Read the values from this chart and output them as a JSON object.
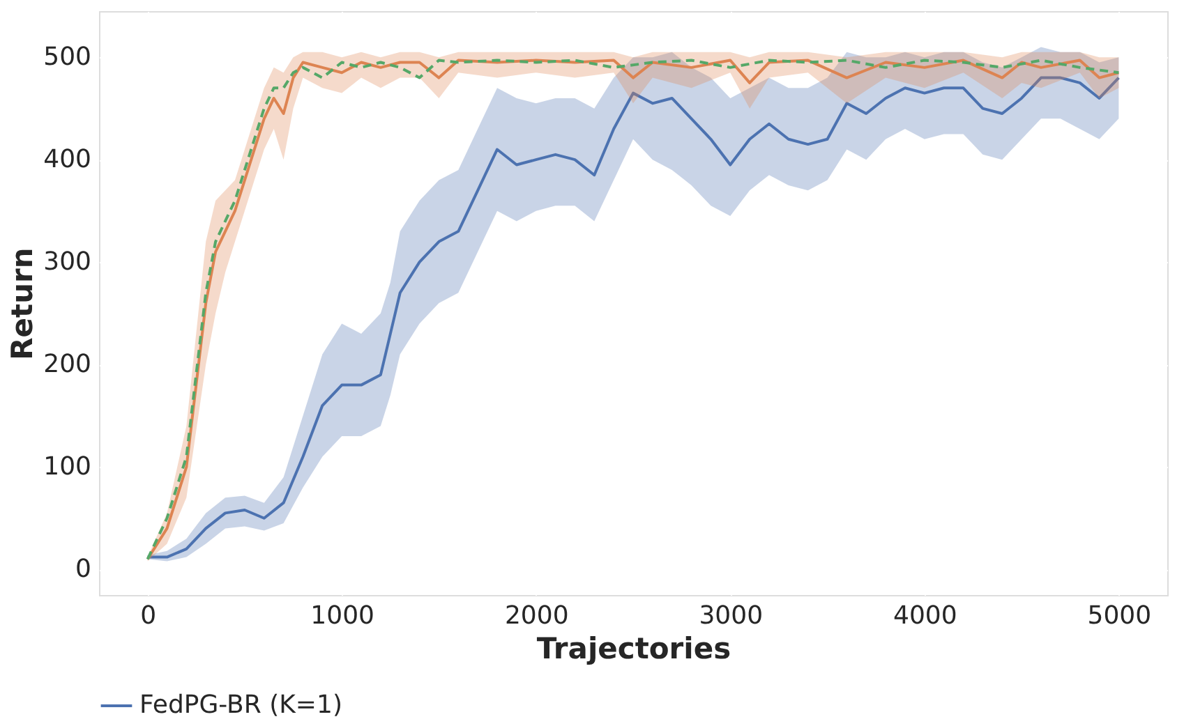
{
  "chart_data": {
    "type": "line",
    "xlabel": "Trajectories",
    "ylabel": "Return",
    "xlim": [
      -250,
      5250
    ],
    "ylim": [
      -25,
      545
    ],
    "xticks": [
      0,
      1000,
      2000,
      3000,
      4000,
      5000
    ],
    "yticks": [
      0,
      100,
      200,
      300,
      400,
      500
    ],
    "grid": true,
    "legend": "bottom",
    "series": [
      {
        "name": "FedPG-BR (K=1)",
        "color": "#4c72b0",
        "line_style": "solid",
        "x": [
          0,
          100,
          200,
          300,
          400,
          500,
          600,
          700,
          800,
          900,
          1000,
          1100,
          1200,
          1250,
          1300,
          1400,
          1500,
          1600,
          1700,
          1800,
          1900,
          2000,
          2100,
          2200,
          2300,
          2400,
          2500,
          2600,
          2700,
          2800,
          2900,
          3000,
          3100,
          3200,
          3300,
          3400,
          3500,
          3600,
          3700,
          3800,
          3900,
          4000,
          4100,
          4200,
          4300,
          4400,
          4500,
          4600,
          4700,
          4800,
          4900,
          5000
        ],
        "values": [
          12,
          12,
          20,
          40,
          55,
          58,
          50,
          65,
          110,
          160,
          180,
          180,
          190,
          230,
          270,
          300,
          320,
          330,
          370,
          410,
          395,
          400,
          405,
          400,
          385,
          430,
          465,
          455,
          460,
          440,
          420,
          395,
          420,
          435,
          420,
          415,
          420,
          455,
          445,
          460,
          470,
          465,
          470,
          470,
          450,
          445,
          460,
          480,
          480,
          475,
          460,
          480
        ],
        "lower": [
          10,
          8,
          12,
          25,
          40,
          42,
          38,
          45,
          80,
          110,
          130,
          130,
          140,
          170,
          210,
          240,
          260,
          270,
          310,
          350,
          340,
          350,
          355,
          355,
          340,
          380,
          420,
          400,
          390,
          375,
          355,
          345,
          370,
          385,
          375,
          370,
          380,
          410,
          400,
          420,
          430,
          420,
          425,
          425,
          405,
          400,
          420,
          440,
          440,
          430,
          420,
          440
        ],
        "upper": [
          14,
          18,
          30,
          55,
          70,
          72,
          65,
          90,
          150,
          210,
          240,
          230,
          250,
          280,
          330,
          360,
          380,
          390,
          430,
          470,
          460,
          455,
          460,
          460,
          450,
          480,
          500,
          500,
          505,
          490,
          480,
          460,
          470,
          480,
          470,
          470,
          480,
          505,
          500,
          500,
          505,
          500,
          505,
          505,
          495,
          490,
          500,
          510,
          505,
          505,
          495,
          500
        ]
      },
      {
        "color": "#dd8452",
        "line_style": "solid",
        "x": [
          0,
          100,
          200,
          300,
          350,
          400,
          450,
          500,
          550,
          600,
          650,
          700,
          750,
          800,
          900,
          1000,
          1100,
          1200,
          1300,
          1400,
          1500,
          1600,
          1800,
          2000,
          2200,
          2400,
          2500,
          2600,
          2800,
          3000,
          3100,
          3200,
          3400,
          3600,
          3800,
          4000,
          4200,
          4400,
          4500,
          4600,
          4800,
          4900,
          5000
        ],
        "values": [
          10,
          40,
          100,
          260,
          310,
          330,
          350,
          380,
          410,
          440,
          460,
          445,
          480,
          495,
          490,
          485,
          495,
          490,
          495,
          495,
          480,
          497,
          495,
          497,
          495,
          497,
          480,
          495,
          490,
          497,
          475,
          495,
          497,
          480,
          495,
          490,
          497,
          480,
          495,
          490,
          497,
          480,
          485
        ],
        "lower": [
          8,
          25,
          70,
          200,
          250,
          290,
          320,
          350,
          380,
          410,
          430,
          400,
          450,
          480,
          470,
          465,
          480,
          470,
          480,
          480,
          460,
          485,
          480,
          485,
          480,
          485,
          455,
          480,
          470,
          485,
          450,
          480,
          485,
          455,
          480,
          470,
          485,
          460,
          475,
          470,
          485,
          460,
          470
        ],
        "upper": [
          12,
          55,
          140,
          320,
          360,
          370,
          380,
          410,
          440,
          470,
          490,
          485,
          500,
          505,
          505,
          500,
          505,
          500,
          505,
          505,
          500,
          505,
          505,
          505,
          505,
          505,
          500,
          505,
          505,
          505,
          500,
          505,
          505,
          500,
          505,
          505,
          505,
          500,
          505,
          505,
          505,
          500,
          500
        ]
      },
      {
        "color": "#55a868",
        "line_style": "dashed",
        "x": [
          0,
          100,
          200,
          300,
          350,
          400,
          450,
          500,
          550,
          600,
          650,
          700,
          750,
          800,
          900,
          1000,
          1100,
          1200,
          1300,
          1400,
          1500,
          1600,
          1800,
          2000,
          2200,
          2400,
          2600,
          2800,
          3000,
          3200,
          3400,
          3600,
          3800,
          4000,
          4200,
          4400,
          4600,
          4800,
          5000
        ],
        "values": [
          10,
          50,
          110,
          270,
          320,
          340,
          360,
          390,
          420,
          450,
          470,
          470,
          485,
          490,
          480,
          495,
          490,
          495,
          490,
          480,
          497,
          495,
          497,
          495,
          497,
          490,
          495,
          497,
          490,
          497,
          495,
          497,
          490,
          497,
          495,
          490,
          497,
          490,
          485
        ]
      }
    ]
  }
}
